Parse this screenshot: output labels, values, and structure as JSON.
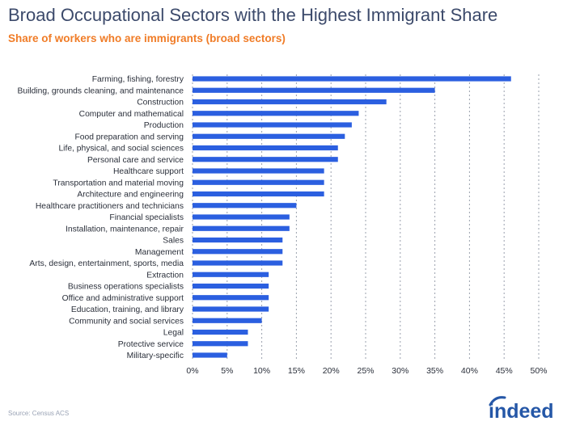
{
  "header": {
    "title": "Broad Occupational Sectors with the Highest Immigrant Share",
    "subtitle": "Share of workers who are immigrants (broad sectors)"
  },
  "footer": {
    "source": "Source: Census ACS",
    "logo_text": "indeed"
  },
  "colors": {
    "bar": "#2b5fe0",
    "title": "#3c4a6b",
    "subtitle": "#f07c27",
    "grid": "#9aa0ad",
    "label": "#2a2f3a",
    "logo": "#2557a7"
  },
  "chart_data": {
    "type": "bar",
    "orientation": "horizontal",
    "title": "Broad Occupational Sectors with the Highest Immigrant Share",
    "subtitle": "Share of workers who are immigrants (broad sectors)",
    "xlabel": "",
    "ylabel": "",
    "xlim": [
      0,
      50
    ],
    "x_ticks": [
      "0%",
      "5%",
      "10%",
      "15%",
      "20%",
      "25%",
      "30%",
      "35%",
      "40%",
      "45%",
      "50%"
    ],
    "grid": "vertical dotted",
    "categories": [
      "Farming, fishing, forestry",
      "Building, grounds cleaning, and maintenance",
      "Construction",
      "Computer and mathematical",
      "Production",
      "Food preparation and serving",
      "Life, physical, and social sciences",
      "Personal care and service",
      "Healthcare support",
      "Transportation and material moving",
      "Architecture and engineering",
      "Healthcare practitioners and technicians",
      "Financial specialists",
      "Installation, maintenance, repair",
      "Sales",
      "Management",
      "Arts, design, entertainment, sports, media",
      "Extraction",
      "Business operations specialists",
      "Office and administrative support",
      "Education, training, and library",
      "Community and social services",
      "Legal",
      "Protective service",
      "Military-specific"
    ],
    "values": [
      46,
      35,
      28,
      24,
      23,
      22,
      21,
      21,
      19,
      19,
      19,
      15,
      14,
      14,
      13,
      13,
      13,
      11,
      11,
      11,
      11,
      10,
      8,
      8,
      5
    ]
  }
}
